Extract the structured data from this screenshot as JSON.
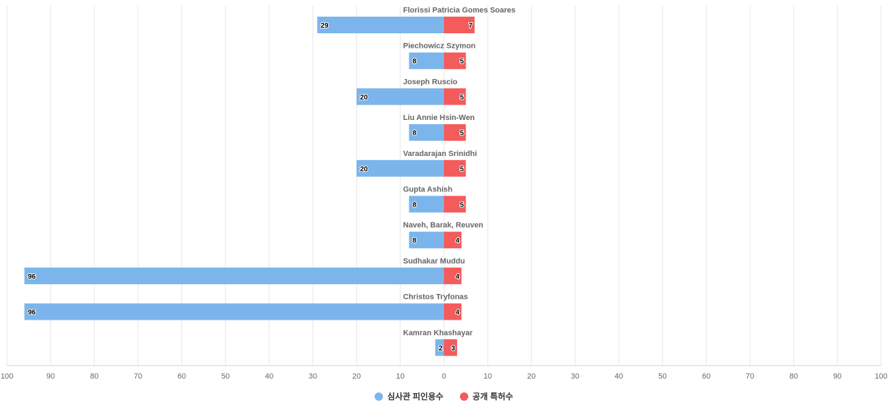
{
  "chart_data": {
    "type": "bar",
    "orientation": "horizontal-diverging",
    "categories": [
      "Florissi Patricia Gomes Soares",
      "Piechowicz Szymon",
      "Joseph Ruscio",
      "Liu Annie Hsin-Wen",
      "Varadarajan Srinidhi",
      "Gupta Ashish",
      "Naveh, Barak, Reuven",
      "Sudhakar Muddu",
      "Christos Tryfonas",
      "Kamran Khashayar"
    ],
    "series": [
      {
        "name": "심사관 피인용수",
        "color": "#7cb5ec",
        "side": "left",
        "values": [
          29,
          8,
          20,
          8,
          20,
          8,
          8,
          96,
          96,
          2
        ]
      },
      {
        "name": "공개 특허수",
        "color": "#f45b5b",
        "side": "right",
        "values": [
          7,
          5,
          5,
          5,
          5,
          5,
          4,
          4,
          4,
          3
        ]
      }
    ],
    "xlim": [
      -100,
      100
    ],
    "x_ticks": [
      "100",
      "90",
      "80",
      "70",
      "60",
      "50",
      "40",
      "30",
      "20",
      "10",
      "0",
      "10",
      "20",
      "30",
      "40",
      "50",
      "60",
      "70",
      "80",
      "90",
      "100"
    ],
    "grid": true,
    "legend_position": "bottom-center"
  }
}
